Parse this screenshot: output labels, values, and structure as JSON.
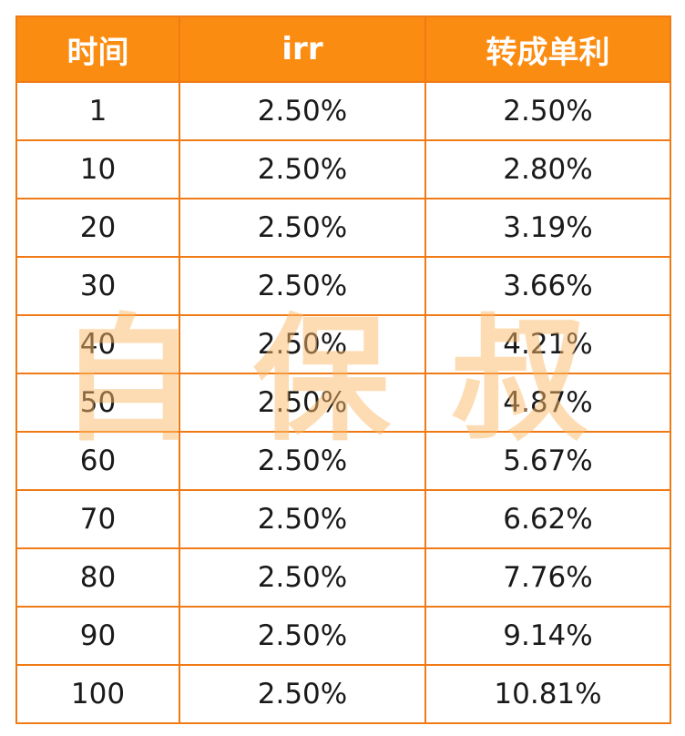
{
  "table": {
    "columns": [
      "时间",
      "irr",
      "转成单利"
    ],
    "rows": [
      [
        "1",
        "2.50%",
        "2.50%"
      ],
      [
        "10",
        "2.50%",
        "2.80%"
      ],
      [
        "20",
        "2.50%",
        "3.19%"
      ],
      [
        "30",
        "2.50%",
        "3.66%"
      ],
      [
        "40",
        "2.50%",
        "4.21%"
      ],
      [
        "50",
        "2.50%",
        "4.87%"
      ],
      [
        "60",
        "2.50%",
        "5.67%"
      ],
      [
        "70",
        "2.50%",
        "6.62%"
      ],
      [
        "80",
        "2.50%",
        "7.76%"
      ],
      [
        "90",
        "2.50%",
        "9.14%"
      ],
      [
        "100",
        "2.50%",
        "10.81%"
      ]
    ]
  },
  "watermark": {
    "chars": [
      "自",
      "保",
      "叔"
    ]
  },
  "colors": {
    "header_bg": "#fb8c12",
    "border": "#f07b16",
    "header_text": "#ffffff",
    "watermark": "#fcba68"
  }
}
